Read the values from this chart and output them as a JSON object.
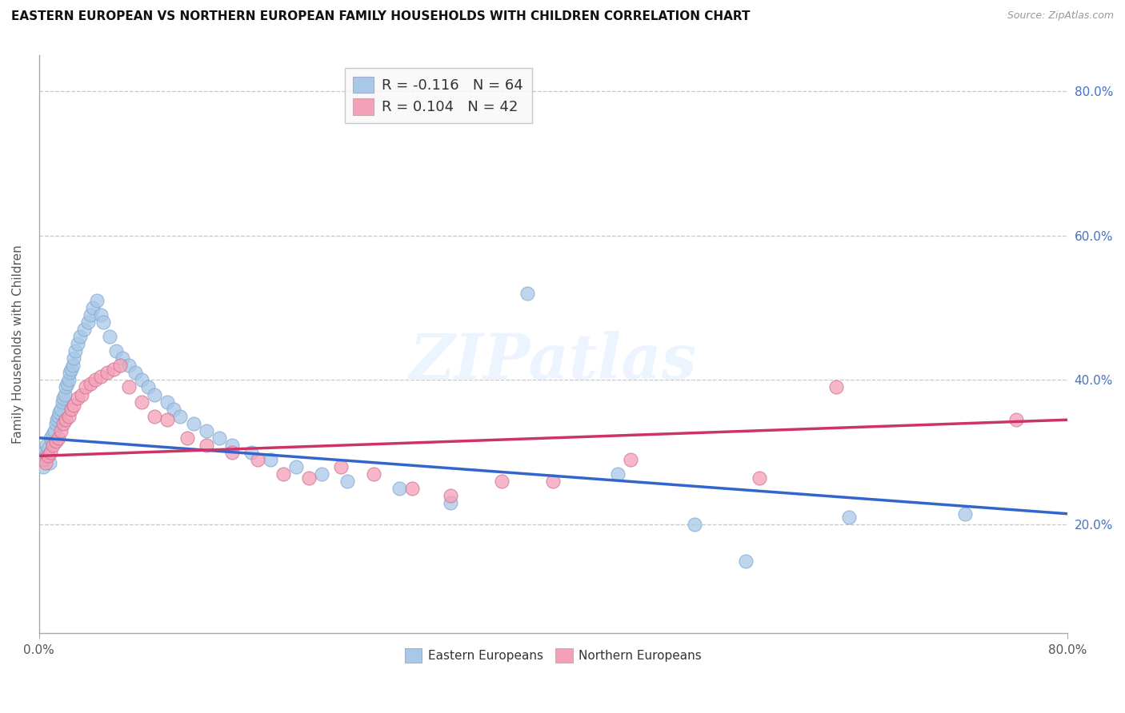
{
  "title": "EASTERN EUROPEAN VS NORTHERN EUROPEAN FAMILY HOUSEHOLDS WITH CHILDREN CORRELATION CHART",
  "source": "Source: ZipAtlas.com",
  "ylabel": "Family Households with Children",
  "eastern_R": -0.116,
  "eastern_N": 64,
  "northern_R": 0.104,
  "northern_N": 42,
  "eastern_color": "#a8c8e8",
  "northern_color": "#f4a0b8",
  "eastern_line_color": "#3366cc",
  "northern_line_color": "#cc3366",
  "background_color": "#ffffff",
  "watermark_text": "ZIPatlas",
  "xlim": [
    0.0,
    0.8
  ],
  "ylim": [
    0.05,
    0.85
  ],
  "yticks": [
    0.2,
    0.4,
    0.6,
    0.8
  ],
  "ytick_labels": [
    "20.0%",
    "40.0%",
    "60.0%",
    "80.0%"
  ],
  "eastern_x": [
    0.002,
    0.003,
    0.004,
    0.005,
    0.006,
    0.007,
    0.008,
    0.009,
    0.01,
    0.011,
    0.012,
    0.013,
    0.014,
    0.015,
    0.016,
    0.017,
    0.018,
    0.019,
    0.02,
    0.021,
    0.022,
    0.023,
    0.024,
    0.025,
    0.026,
    0.027,
    0.028,
    0.03,
    0.032,
    0.035,
    0.038,
    0.04,
    0.042,
    0.045,
    0.048,
    0.05,
    0.055,
    0.06,
    0.065,
    0.07,
    0.075,
    0.08,
    0.085,
    0.09,
    0.1,
    0.105,
    0.11,
    0.12,
    0.13,
    0.14,
    0.15,
    0.165,
    0.18,
    0.2,
    0.22,
    0.24,
    0.28,
    0.32,
    0.38,
    0.45,
    0.51,
    0.55,
    0.63,
    0.72
  ],
  "eastern_y": [
    0.29,
    0.28,
    0.3,
    0.295,
    0.31,
    0.305,
    0.285,
    0.32,
    0.315,
    0.325,
    0.33,
    0.34,
    0.345,
    0.35,
    0.355,
    0.36,
    0.37,
    0.375,
    0.38,
    0.39,
    0.395,
    0.4,
    0.41,
    0.415,
    0.42,
    0.43,
    0.44,
    0.45,
    0.46,
    0.47,
    0.48,
    0.49,
    0.5,
    0.51,
    0.49,
    0.48,
    0.46,
    0.44,
    0.43,
    0.42,
    0.41,
    0.4,
    0.39,
    0.38,
    0.37,
    0.36,
    0.35,
    0.34,
    0.33,
    0.32,
    0.31,
    0.3,
    0.29,
    0.28,
    0.27,
    0.26,
    0.25,
    0.23,
    0.52,
    0.27,
    0.2,
    0.15,
    0.21,
    0.215
  ],
  "northern_x": [
    0.003,
    0.005,
    0.007,
    0.009,
    0.011,
    0.013,
    0.015,
    0.017,
    0.019,
    0.021,
    0.023,
    0.025,
    0.027,
    0.03,
    0.033,
    0.036,
    0.04,
    0.044,
    0.048,
    0.053,
    0.058,
    0.063,
    0.07,
    0.08,
    0.09,
    0.1,
    0.115,
    0.13,
    0.15,
    0.17,
    0.19,
    0.21,
    0.235,
    0.26,
    0.29,
    0.32,
    0.36,
    0.4,
    0.46,
    0.56,
    0.62,
    0.76
  ],
  "northern_y": [
    0.29,
    0.285,
    0.295,
    0.3,
    0.31,
    0.315,
    0.32,
    0.33,
    0.34,
    0.345,
    0.35,
    0.36,
    0.365,
    0.375,
    0.38,
    0.39,
    0.395,
    0.4,
    0.405,
    0.41,
    0.415,
    0.42,
    0.39,
    0.37,
    0.35,
    0.345,
    0.32,
    0.31,
    0.3,
    0.29,
    0.27,
    0.265,
    0.28,
    0.27,
    0.25,
    0.24,
    0.26,
    0.26,
    0.29,
    0.265,
    0.39,
    0.345
  ],
  "trend_eastern_x0": 0.0,
  "trend_eastern_y0": 0.32,
  "trend_eastern_x1": 0.8,
  "trend_eastern_y1": 0.215,
  "trend_northern_x0": 0.0,
  "trend_northern_y0": 0.295,
  "trend_northern_x1": 0.8,
  "trend_northern_y1": 0.345
}
